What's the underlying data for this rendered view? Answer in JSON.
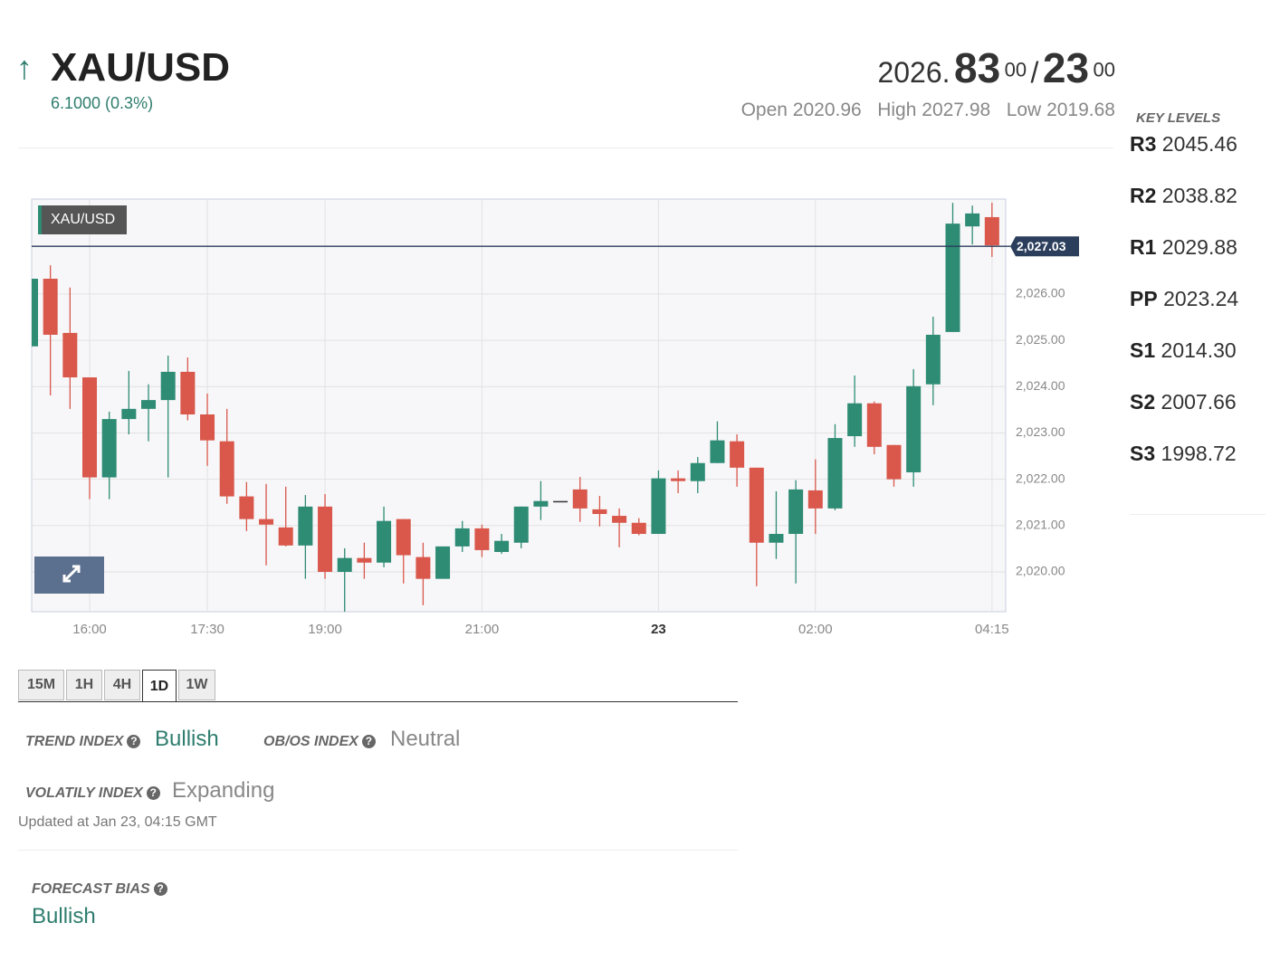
{
  "header": {
    "symbol": "XAU/USD",
    "change": "6.1000 (0.3%)",
    "bid_main": "2026.",
    "bid_big": "83",
    "bid_sup": "00",
    "separator": "/",
    "ask_big": "23",
    "ask_sup": "00",
    "open_label": "Open",
    "open": "2020.96",
    "high_label": "High",
    "high": "2027.98",
    "low_label": "Low",
    "low": "2019.68"
  },
  "key_levels": {
    "title": "KEY LEVELS",
    "levels": [
      {
        "name": "R3",
        "value": "2045.46"
      },
      {
        "name": "R2",
        "value": "2038.82"
      },
      {
        "name": "R1",
        "value": "2029.88"
      },
      {
        "name": "PP",
        "value": "2023.24"
      },
      {
        "name": "S1",
        "value": "2014.30"
      },
      {
        "name": "S2",
        "value": "2007.66"
      },
      {
        "name": "S3",
        "value": "1998.72"
      }
    ]
  },
  "timeframes": [
    {
      "label": "15M",
      "active": false
    },
    {
      "label": "1H",
      "active": false
    },
    {
      "label": "4H",
      "active": false
    },
    {
      "label": "1D",
      "active": true
    },
    {
      "label": "1W",
      "active": false
    }
  ],
  "indicators": {
    "trend_label": "TREND INDEX",
    "trend_value": "Bullish",
    "obos_label": "OB/OS INDEX",
    "obos_value": "Neutral",
    "volatility_label": "VOLATILY INDEX",
    "volatility_value": "Expanding",
    "updated": "Updated at Jan 23, 04:15 GMT",
    "forecast_label": "FORECAST BIAS",
    "forecast_value": "Bullish"
  },
  "chart_data": {
    "type": "candlestick",
    "title": "XAU/USD",
    "up_color": "#2e8b74",
    "down_color": "#d9574b",
    "grid": true,
    "categories": [
      null,
      null,
      null,
      "16:00",
      null,
      null,
      null,
      null,
      null,
      "17:30",
      null,
      null,
      null,
      null,
      null,
      "19:00",
      null,
      null,
      null,
      null,
      null,
      null,
      null,
      "21:00",
      null,
      null,
      null,
      null,
      null,
      null,
      null,
      null,
      "23",
      null,
      null,
      null,
      null,
      null,
      null,
      null,
      "02:00",
      null,
      null,
      null,
      null,
      null,
      null,
      null,
      null,
      "04:15"
    ],
    "open": [
      2024.87,
      2026.33,
      2025.16,
      2024.2,
      2022.04,
      2023.3,
      2023.52,
      2023.71,
      2024.32,
      2023.4,
      2022.82,
      2021.63,
      2021.14,
      2020.96,
      2020.57,
      2021.41,
      2020.0,
      2020.3,
      2020.2,
      2021.14,
      2020.32,
      2019.85,
      2020.55,
      2020.94,
      2020.43,
      2020.63,
      2021.41,
      2021.53,
      2021.78,
      2021.35,
      2021.21,
      2021.06,
      2020.82,
      2022.02,
      2021.96,
      2022.35,
      2022.82,
      2022.25,
      2020.63,
      2020.82,
      2021.76,
      2021.37,
      2022.93,
      2023.64,
      2022.74,
      2022.15,
      2024.05,
      2025.18,
      2027.46,
      2027.66
    ],
    "high": [
      2026.59,
      2026.62,
      2026.14,
      2024.2,
      2023.46,
      2024.34,
      2024.05,
      2024.67,
      2024.63,
      2023.85,
      2023.52,
      2021.94,
      2021.9,
      2021.84,
      2021.66,
      2021.68,
      2020.51,
      2020.63,
      2021.41,
      2021.14,
      2020.63,
      2020.55,
      2021.1,
      2021.02,
      2020.82,
      2021.41,
      2021.96,
      2021.53,
      2022.05,
      2021.64,
      2021.37,
      2021.16,
      2022.19,
      2022.19,
      2022.48,
      2023.25,
      2022.97,
      2022.25,
      2021.74,
      2021.98,
      2022.43,
      2023.19,
      2024.24,
      2023.68,
      2022.74,
      2024.38,
      2025.51,
      2027.97,
      2027.91,
      2027.97
    ],
    "low": [
      2024.63,
      2023.81,
      2023.52,
      2021.57,
      2021.57,
      2022.97,
      2022.82,
      2022.04,
      2023.27,
      2022.29,
      2021.47,
      2020.88,
      2020.14,
      2020.55,
      2019.85,
      2019.85,
      2019.14,
      2019.85,
      2020.1,
      2019.75,
      2019.28,
      2019.85,
      2020.43,
      2020.32,
      2020.39,
      2020.51,
      2021.12,
      2021.53,
      2021.08,
      2020.98,
      2020.53,
      2020.79,
      2020.82,
      2021.7,
      2021.7,
      2022.35,
      2021.84,
      2019.69,
      2020.28,
      2019.75,
      2020.82,
      2021.33,
      2022.7,
      2022.54,
      2021.84,
      2021.84,
      2023.6,
      2025.18,
      2027.07,
      2026.8
    ],
    "close": [
      2026.33,
      2025.12,
      2024.2,
      2022.04,
      2023.3,
      2023.52,
      2023.71,
      2024.32,
      2023.4,
      2022.84,
      2021.63,
      2021.14,
      2021.02,
      2020.57,
      2021.41,
      2020.0,
      2020.3,
      2020.2,
      2021.1,
      2020.36,
      2019.85,
      2020.55,
      2020.94,
      2020.47,
      2020.67,
      2021.41,
      2021.53,
      2021.53,
      2021.37,
      2021.25,
      2021.06,
      2020.82,
      2022.02,
      2021.96,
      2022.35,
      2022.84,
      2022.25,
      2020.63,
      2020.82,
      2021.78,
      2021.37,
      2022.89,
      2023.64,
      2022.7,
      2022.0,
      2024.01,
      2025.12,
      2027.52,
      2027.74,
      2027.05
    ],
    "ylim": [
      2019.14,
      2028.05
    ],
    "yticks": [
      {
        "value": 2020,
        "label": "2,020.00"
      },
      {
        "value": 2021,
        "label": "2,021.00"
      },
      {
        "value": 2022,
        "label": "2,022.00"
      },
      {
        "value": 2023,
        "label": "2,023.00"
      },
      {
        "value": 2024,
        "label": "2,024.00"
      },
      {
        "value": 2025,
        "label": "2,025.00"
      },
      {
        "value": 2026,
        "label": "2,026.00"
      }
    ],
    "price_line": {
      "value": 2027.03,
      "label": "2,027.03"
    }
  }
}
